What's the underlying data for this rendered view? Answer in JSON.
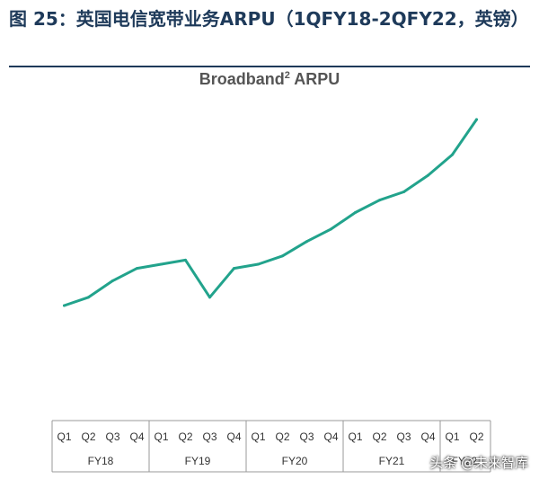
{
  "figure": {
    "title": "图 25：英国电信宽带业务ARPU（1QFY18-2QFY22，英镑）"
  },
  "watermark": "头条 @未来智库",
  "chart_data": {
    "type": "line",
    "title": "Broadband",
    "title_superscript": "2",
    "title_suffix": " ARPU",
    "groups": [
      {
        "label": "FY18",
        "quarters": [
          "Q1",
          "Q2",
          "Q3",
          "Q4"
        ]
      },
      {
        "label": "FY19",
        "quarters": [
          "Q1",
          "Q2",
          "Q3",
          "Q4"
        ]
      },
      {
        "label": "FY20",
        "quarters": [
          "Q1",
          "Q2",
          "Q3",
          "Q4"
        ]
      },
      {
        "label": "FY21",
        "quarters": [
          "Q1",
          "Q2",
          "Q3",
          "Q4"
        ]
      },
      {
        "label": "FY22",
        "quarters": [
          "Q1",
          "Q2"
        ]
      }
    ],
    "series": [
      {
        "values": [
          20.0,
          20.4,
          21.2,
          21.8,
          22.0,
          22.2,
          20.4,
          21.8,
          22.0,
          22.4,
          23.1,
          23.7,
          24.5,
          25.1,
          25.5,
          26.3,
          27.3,
          29.0
        ],
        "color": "#22a38c"
      }
    ],
    "ylim": [
      15,
      30
    ],
    "grid": false,
    "legend": "none"
  }
}
